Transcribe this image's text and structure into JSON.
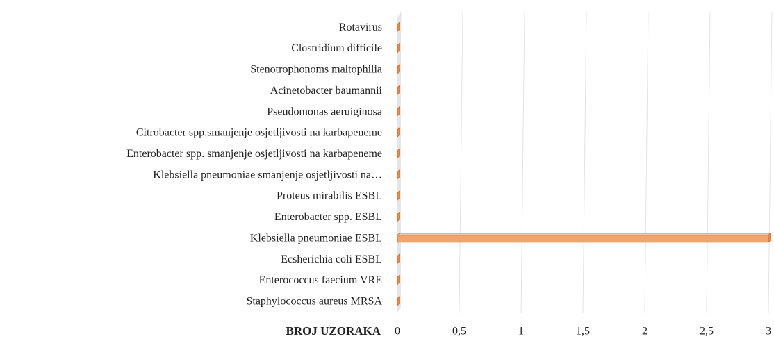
{
  "chart_data": {
    "type": "bar3d",
    "categories": [
      "Rotavirus",
      "Clostridium difficile",
      "Stenotrophonoms maltophilia",
      "Acinetobacter baumannii",
      "Pseudomonas aeruiginosa",
      "Citrobacter spp.smanjenje osjetljivosti na karbapeneme",
      "Enterobacter spp. smanjenje osjetljivosti na karbapeneme",
      "Klebsiella pneumoniae smanjenje osjetljivosti na…",
      "Proteus mirabilis ESBL",
      "Enterobacter spp. ESBL",
      "Klebsiella pneumoniae ESBL",
      "Ecsherichia coli ESBL",
      "Enterococcus faecium VRE",
      "Staphylococcus aureus MRSA"
    ],
    "values": [
      0,
      0,
      0,
      0,
      0,
      0,
      0,
      0,
      0,
      0,
      3,
      0,
      0,
      0
    ],
    "color": "#f4a36c",
    "edge_color": "#e0702a",
    "xlabel": "BROJ UZORAKA",
    "xlim": [
      0,
      3
    ],
    "xticks": [
      0,
      {
        "value": 0.5,
        "label": "0,5"
      },
      1,
      {
        "value": 1.5,
        "label": "1,5"
      },
      2,
      {
        "value": 2.5,
        "label": "2,5"
      },
      3
    ],
    "grid": true
  }
}
